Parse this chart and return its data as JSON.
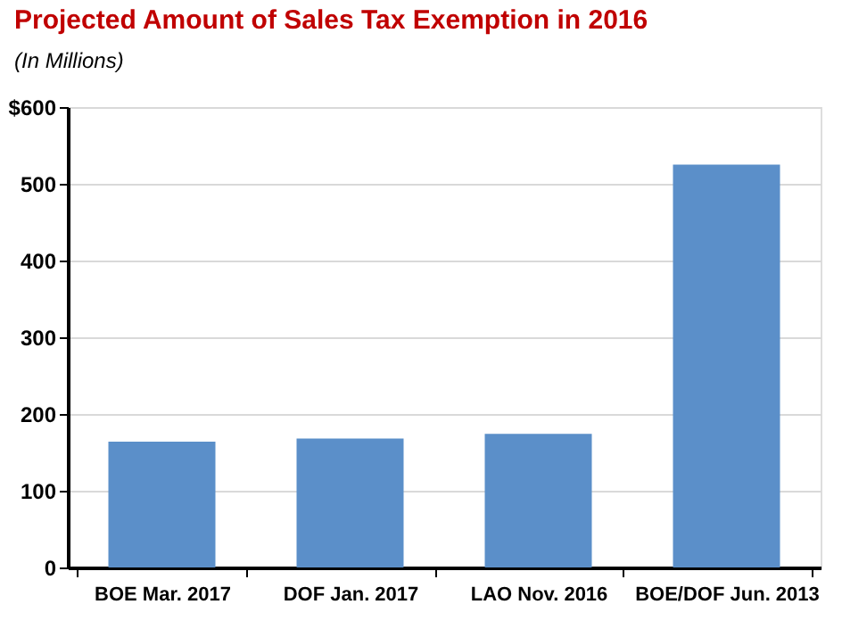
{
  "chart_data": {
    "type": "bar",
    "title": "Projected Amount  of Sales Tax Exemption  in 2016",
    "subtitle": "(In Millions)",
    "categories": [
      "BOE Mar. 2017",
      "DOF Jan. 2017",
      "LAO Nov. 2016",
      "BOE/DOF Jun. 2013"
    ],
    "values": [
      164,
      168,
      174,
      525
    ],
    "color": "#5b8fc9",
    "ylim": [
      0,
      600
    ],
    "yticks": [
      0,
      100,
      200,
      300,
      400,
      500,
      {
        "value": 600,
        "label": "$600"
      }
    ],
    "grid": "y"
  }
}
